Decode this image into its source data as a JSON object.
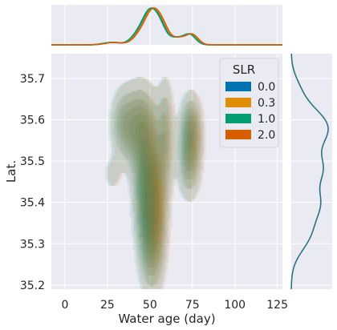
{
  "chart_data": {
    "type": "kde_joint",
    "xlabel": "Water age (day)",
    "ylabel": "Lat.",
    "xlim": [
      -8,
      128
    ],
    "ylim": [
      35.19,
      35.76
    ],
    "xticks": [
      0,
      25,
      50,
      75,
      100,
      125
    ],
    "yticks": [
      35.2,
      35.3,
      35.4,
      35.5,
      35.6,
      35.7
    ],
    "xtick_labels": [
      "0",
      "25",
      "50",
      "75",
      "100",
      "125"
    ],
    "ytick_labels": [
      "35.2",
      "35.3",
      "35.4",
      "35.5",
      "35.6",
      "35.7"
    ],
    "grid": true,
    "legend": {
      "title": "SLR",
      "position": "top-right",
      "entries": [
        {
          "label": "0.0",
          "color": "#0173b2"
        },
        {
          "label": "0.3",
          "color": "#de8f05"
        },
        {
          "label": "1.0",
          "color": "#029e73"
        },
        {
          "label": "2.0",
          "color": "#d55e00"
        }
      ]
    },
    "series": [
      {
        "name": "0.0",
        "color": "#0173b2",
        "x_offset": 0.0
      },
      {
        "name": "0.3",
        "color": "#de8f05",
        "x_offset": 0.6
      },
      {
        "name": "1.0",
        "color": "#029e73",
        "x_offset": -0.8
      },
      {
        "name": "2.0",
        "color": "#d55e00",
        "x_offset": 1.2
      }
    ],
    "joint_components": [
      {
        "mx": 51,
        "my": 35.36,
        "sx": 4.5,
        "sy": 0.09,
        "w": 1.0
      },
      {
        "mx": 49,
        "my": 35.46,
        "sx": 5.0,
        "sy": 0.08,
        "w": 0.6
      },
      {
        "mx": 44,
        "my": 35.58,
        "sx": 6.0,
        "sy": 0.06,
        "w": 0.55
      },
      {
        "mx": 34,
        "my": 35.59,
        "sx": 4.5,
        "sy": 0.05,
        "w": 0.3
      },
      {
        "mx": 59,
        "my": 35.56,
        "sx": 3.0,
        "sy": 0.08,
        "w": 0.35
      },
      {
        "mx": 74,
        "my": 35.57,
        "sx": 3.8,
        "sy": 0.05,
        "w": 0.6
      },
      {
        "mx": 73,
        "my": 35.49,
        "sx": 4.0,
        "sy": 0.05,
        "w": 0.35
      },
      {
        "mx": 28,
        "my": 35.47,
        "sx": 3.0,
        "sy": 0.025,
        "w": 0.15
      }
    ],
    "marginal_x_components": [
      {
        "m": 51,
        "s": 4.2,
        "w": 1.0
      },
      {
        "m": 57,
        "s": 3.5,
        "w": 0.45
      },
      {
        "m": 44,
        "s": 4.5,
        "w": 0.35
      },
      {
        "m": 74,
        "s": 3.5,
        "w": 0.33
      },
      {
        "m": 66,
        "s": 4.0,
        "w": 0.22
      },
      {
        "m": 28,
        "s": 5.0,
        "w": 0.08
      }
    ],
    "marginal_y": {
      "color": "#2a7480",
      "components": [
        {
          "m": 35.58,
          "s": 0.05,
          "w": 1.0
        },
        {
          "m": 35.48,
          "s": 0.035,
          "w": 0.65
        },
        {
          "m": 35.4,
          "s": 0.04,
          "w": 0.7
        },
        {
          "m": 35.32,
          "s": 0.04,
          "w": 0.45
        },
        {
          "m": 35.68,
          "s": 0.03,
          "w": 0.12
        }
      ]
    },
    "contour_levels": 10
  }
}
